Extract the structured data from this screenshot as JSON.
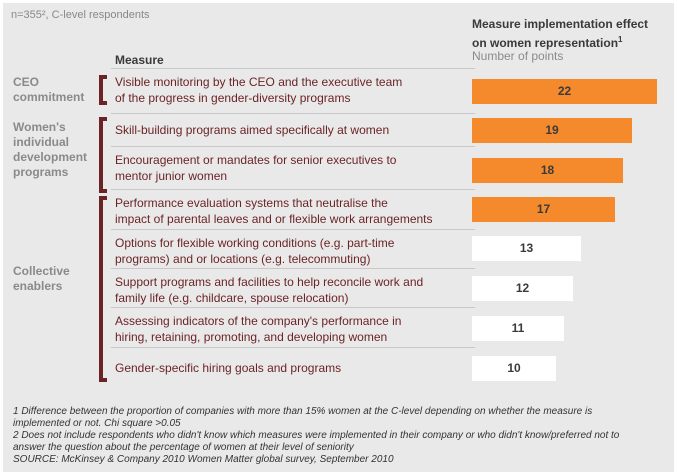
{
  "sample_note": "n=355², C-level respondents",
  "header": {
    "measure": "Measure",
    "effect_line1": "Measure implementation effect",
    "effect_line2": "on women representation",
    "effect_sup": "1",
    "unit": "Number of points"
  },
  "groups": [
    {
      "lines": [
        "CEO",
        "commitment"
      ]
    },
    {
      "lines": [
        "Women's",
        "individual",
        "development",
        "programs"
      ]
    },
    {
      "lines": [
        "Collective",
        "enablers"
      ]
    }
  ],
  "measures": [
    {
      "lines": [
        "Visible monitoring by the CEO and the executive team",
        "of the progress in gender-diversity programs"
      ]
    },
    {
      "lines": [
        "Skill-building programs aimed specifically at women"
      ]
    },
    {
      "lines": [
        "Encouragement or mandates for senior executives to",
        "mentor junior women"
      ]
    },
    {
      "lines": [
        "Performance evaluation systems that neutralise the",
        "impact of parental leaves and or flexible work arrangements"
      ]
    },
    {
      "lines": [
        "Options for flexible working conditions (e.g. part-time",
        "programs) and or locations (e.g. telecommuting)"
      ]
    },
    {
      "lines": [
        "Support programs and facilities to help reconcile work and",
        "family life (e.g. childcare, spouse relocation)"
      ]
    },
    {
      "lines": [
        "Assessing indicators of the company's performance in",
        "hiring, retaining, promoting, and developing women"
      ]
    },
    {
      "lines": [
        "Gender-specific hiring goals and programs"
      ]
    }
  ],
  "colors": {
    "highlight": "#f58a2d",
    "plain": "#ffffff",
    "bracket": "#6b2426"
  },
  "chart_data": {
    "type": "bar",
    "orientation": "horizontal",
    "categories": [
      "Visible monitoring by the CEO and the executive team of the progress in gender-diversity programs",
      "Skill-building programs aimed specifically at women",
      "Encouragement or mandates for senior executives to mentor junior women",
      "Performance evaluation systems that neutralise the impact of parental leaves and or flexible work arrangements",
      "Options for flexible working conditions (e.g. part-time programs) and or locations (e.g. telecommuting)",
      "Support programs and facilities to help reconcile work and family life (e.g. childcare, spouse relocation)",
      "Assessing indicators of the company's performance in hiring, retaining, promoting, and developing women",
      "Gender-specific hiring goals and programs"
    ],
    "values": [
      22,
      19,
      18,
      17,
      13,
      12,
      11,
      10
    ],
    "highlighted": [
      true,
      true,
      true,
      true,
      false,
      false,
      false,
      false
    ],
    "labels": [
      "22",
      "19",
      "18",
      "17",
      "13",
      "12",
      "11",
      "10"
    ]
  },
  "footnotes": [
    "1 Difference between the proportion of companies with more than 15% women at the C-level depending on whether the measure is",
    "implemented or not. Chi square >0.05",
    "2 Does not include respondents who didn't know which measures were implemented in their company or who didn't know/preferred not to",
    "answer the question about the percentage of women at their level of seniority",
    "SOURCE: McKinsey & Company 2010 Women Matter global survey, September 2010"
  ]
}
